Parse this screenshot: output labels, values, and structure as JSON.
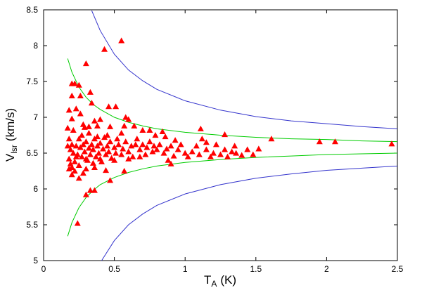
{
  "chart_data": {
    "type": "scatter",
    "x_label": {
      "text": "T",
      "subscript": "A",
      "suffix": "(K)"
    },
    "y_label": {
      "text": "V",
      "subscript": "lsr",
      "suffix": "(km/s)"
    },
    "xlim": [
      0,
      2.5
    ],
    "xticks": [
      0,
      0.5,
      1,
      1.5,
      2,
      2.5
    ],
    "ylim": [
      5,
      8.5
    ],
    "yticks": [
      5,
      5.5,
      6,
      6.5,
      7,
      7.5,
      8,
      8.5
    ],
    "series": [
      {
        "type": "scatter",
        "color": "#ff0000",
        "marker": "triangle",
        "x": [
          0.55,
          0.43,
          0.3,
          0.22,
          0.2,
          0.25,
          0.33,
          0.2,
          0.26,
          0.34,
          0.18,
          0.23,
          0.26,
          0.46,
          0.51,
          0.6,
          0.58,
          0.36,
          0.4,
          0.2,
          0.28,
          0.17,
          0.29,
          0.32,
          0.38,
          0.47,
          0.57,
          0.64,
          0.7,
          0.75,
          0.79,
          0.84,
          0.86,
          1.11,
          1.28,
          1.61,
          1.95,
          2.06,
          2.46,
          0.24,
          0.3,
          0.33,
          0.36,
          0.47,
          0.2,
          0.18,
          0.2,
          0.22,
          0.28,
          0.25,
          0.3,
          0.36,
          0.44,
          0.57,
          0.17,
          0.18,
          0.19,
          0.2,
          0.21,
          0.22,
          0.23,
          0.24,
          0.25,
          0.26,
          0.27,
          0.28,
          0.29,
          0.3,
          0.31,
          0.32,
          0.33,
          0.34,
          0.35,
          0.36,
          0.37,
          0.38,
          0.39,
          0.4,
          0.41,
          0.42,
          0.43,
          0.44,
          0.45,
          0.46,
          0.47,
          0.48,
          0.5,
          0.51,
          0.52,
          0.53,
          0.55,
          0.56,
          0.58,
          0.6,
          0.62,
          0.63,
          0.65,
          0.66,
          0.68,
          0.7,
          0.72,
          0.73,
          0.75,
          0.77,
          0.78,
          0.8,
          0.82,
          0.85,
          0.87,
          0.88,
          0.9,
          0.92,
          0.95,
          0.97,
          1.0,
          1.02,
          1.05,
          1.08,
          1.1,
          1.12,
          1.15,
          1.18,
          1.2,
          1.22,
          1.25,
          1.28,
          1.3,
          1.33,
          1.36,
          1.4,
          1.44,
          1.48,
          1.52,
          0.18,
          0.19,
          0.21,
          0.23,
          0.25,
          0.27,
          0.3,
          0.32,
          0.35,
          0.38,
          0.4,
          0.45,
          0.5,
          0.55,
          0.6,
          0.68,
          0.9,
          0.93,
          1.15,
          1.35
        ],
        "values": [
          8.07,
          7.95,
          7.75,
          7.47,
          7.47,
          7.45,
          7.35,
          7.3,
          7.3,
          7.2,
          7.1,
          7.12,
          7.05,
          7.15,
          7.15,
          6.97,
          7.0,
          6.95,
          6.97,
          6.98,
          6.9,
          6.85,
          6.86,
          6.87,
          6.88,
          6.87,
          6.88,
          6.88,
          6.82,
          6.82,
          6.75,
          6.8,
          6.73,
          6.84,
          6.76,
          6.7,
          6.66,
          6.66,
          6.63,
          5.52,
          5.92,
          5.98,
          5.98,
          6.12,
          6.2,
          6.28,
          6.3,
          6.25,
          6.22,
          6.15,
          6.28,
          6.3,
          6.26,
          6.25,
          6.6,
          6.42,
          6.55,
          6.62,
          6.5,
          6.38,
          6.6,
          6.48,
          6.7,
          6.58,
          6.45,
          6.62,
          6.52,
          6.66,
          6.4,
          6.57,
          6.48,
          6.62,
          6.55,
          6.7,
          6.45,
          6.6,
          6.5,
          6.64,
          6.38,
          6.56,
          6.72,
          6.48,
          6.6,
          6.52,
          6.66,
          6.43,
          6.58,
          6.5,
          6.7,
          6.62,
          6.48,
          6.56,
          6.66,
          6.52,
          6.6,
          6.45,
          6.62,
          6.7,
          6.55,
          6.62,
          6.48,
          6.58,
          6.66,
          6.52,
          6.6,
          6.55,
          6.62,
          6.5,
          6.56,
          6.4,
          6.6,
          6.46,
          6.55,
          6.62,
          6.5,
          6.45,
          6.52,
          6.6,
          6.48,
          6.7,
          6.55,
          6.45,
          6.5,
          6.62,
          6.48,
          6.55,
          6.45,
          6.52,
          6.5,
          6.47,
          6.55,
          6.48,
          6.56,
          6.7,
          6.35,
          6.82,
          6.45,
          6.33,
          6.75,
          6.42,
          6.78,
          6.36,
          6.73,
          6.42,
          6.75,
          6.4,
          6.78,
          6.42,
          6.45,
          6.35,
          6.68,
          6.65,
          6.6
        ]
      },
      {
        "type": "line",
        "color": "#00cc00",
        "x": [
          0.17,
          0.2,
          0.25,
          0.3,
          0.35,
          0.4,
          0.5,
          0.6,
          0.7,
          0.8,
          1,
          1.25,
          1.5,
          1.75,
          2,
          2.25,
          2.5
        ],
        "values": [
          7.82,
          7.63,
          7.42,
          7.28,
          7.18,
          7.11,
          7.0,
          6.93,
          6.88,
          6.84,
          6.79,
          6.75,
          6.72,
          6.7,
          6.69,
          6.67,
          6.66
        ]
      },
      {
        "type": "line",
        "color": "#00cc00",
        "x": [
          0.17,
          0.2,
          0.25,
          0.3,
          0.35,
          0.4,
          0.5,
          0.6,
          0.7,
          0.8,
          1,
          1.25,
          1.5,
          1.75,
          2,
          2.25,
          2.5
        ],
        "values": [
          5.34,
          5.53,
          5.74,
          5.88,
          5.98,
          6.06,
          6.16,
          6.23,
          6.28,
          6.32,
          6.37,
          6.41,
          6.44,
          6.46,
          6.48,
          6.49,
          6.5
        ]
      },
      {
        "type": "line",
        "color": "#3333cc",
        "x": [
          0.34,
          0.4,
          0.5,
          0.6,
          0.7,
          0.8,
          1,
          1.25,
          1.5,
          1.75,
          2,
          2.25,
          2.5
        ],
        "values": [
          8.49,
          8.21,
          7.88,
          7.66,
          7.51,
          7.39,
          7.23,
          7.1,
          7.01,
          6.95,
          6.91,
          6.87,
          6.84
        ]
      },
      {
        "type": "line",
        "color": "#3333cc",
        "x": [
          0.41,
          0.5,
          0.6,
          0.7,
          0.8,
          1,
          1.25,
          1.5,
          1.75,
          2,
          2.25,
          2.5
        ],
        "values": [
          5.0,
          5.28,
          5.5,
          5.65,
          5.77,
          5.93,
          6.06,
          6.15,
          6.21,
          6.26,
          6.29,
          6.32
        ]
      }
    ]
  }
}
